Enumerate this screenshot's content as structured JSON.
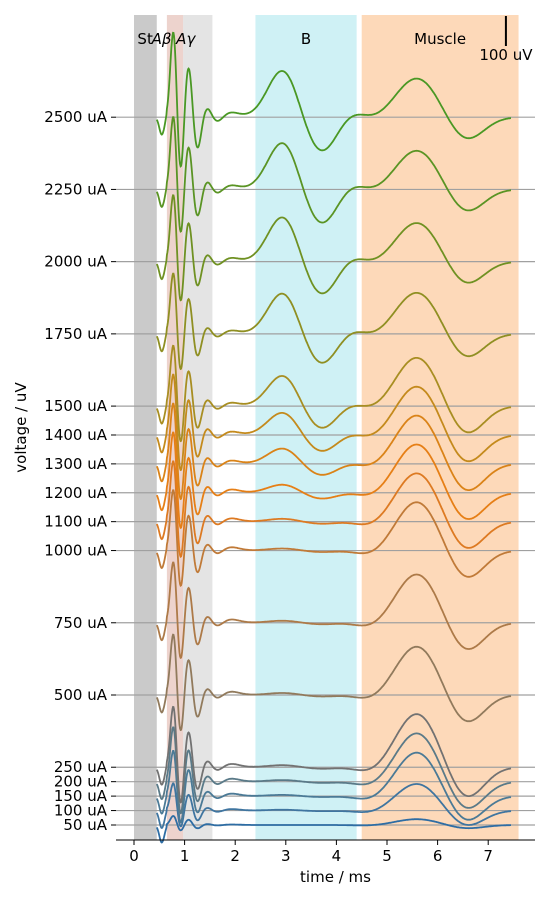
{
  "chart_data": {
    "type": "line",
    "xlabel": "time / ms",
    "ylabel": "voltage / uV",
    "xlim": [
      -0.35,
      8.0
    ],
    "x_ticks": [
      0,
      1,
      2,
      3,
      4,
      5,
      6,
      7
    ],
    "scale_bar": {
      "label": "100 uV",
      "time_ms": 7.35,
      "voltage_uV": 100
    },
    "regions": [
      {
        "name": "St",
        "label": "St",
        "x_start": 0.0,
        "x_end": 0.45,
        "color": "#b3b3b3",
        "alpha": 0.7
      },
      {
        "name": "Ab",
        "label": "",
        "x_start": 0.65,
        "x_end": 0.97,
        "color": "#e8c8c0",
        "alpha": 0.8
      },
      {
        "name": "Ag",
        "label": "",
        "x_start": 0.97,
        "x_end": 1.55,
        "color": "#d9d9d9",
        "alpha": 0.7
      },
      {
        "name": "B",
        "label": "B",
        "x_start": 2.4,
        "x_end": 4.4,
        "color": "#a8e6ec",
        "alpha": 0.55
      },
      {
        "name": "Muscle",
        "label": "Muscle",
        "x_start": 4.5,
        "x_end": 7.6,
        "color": "#fdd0a8",
        "alpha": 0.8
      }
    ],
    "region_label_abg": "Aβ Aγ",
    "series": [
      {
        "name": "50 uA",
        "level": 50,
        "color": "#2e6da4",
        "a_amp": 0.15,
        "b_amp": 0.0,
        "m_amp": 0.12
      },
      {
        "name": "100 uA",
        "level": 100,
        "color": "#3f75a0",
        "a_amp": 0.45,
        "b_amp": 0.02,
        "m_amp": 0.55
      },
      {
        "name": "150 uA",
        "level": 150,
        "color": "#4b7a96",
        "a_amp": 0.75,
        "b_amp": 0.03,
        "m_amp": 0.9
      },
      {
        "name": "200 uA",
        "level": 200,
        "color": "#5a7a88",
        "a_amp": 0.9,
        "b_amp": 0.04,
        "m_amp": 1.0
      },
      {
        "name": "250 uA",
        "level": 250,
        "color": "#727272",
        "a_amp": 1.0,
        "b_amp": 0.05,
        "m_amp": 1.1
      },
      {
        "name": "500 uA",
        "level": 500,
        "color": "#917a5c",
        "a_amp": 1.0,
        "b_amp": 0.05,
        "m_amp": 1.0
      },
      {
        "name": "750 uA",
        "level": 750,
        "color": "#ad7a48",
        "a_amp": 1.0,
        "b_amp": 0.05,
        "m_amp": 1.0
      },
      {
        "name": "1000 uA",
        "level": 1000,
        "color": "#c07a38",
        "a_amp": 1.0,
        "b_amp": 0.05,
        "m_amp": 1.0
      },
      {
        "name": "1100 uA",
        "level": 1100,
        "color": "#dd7a22",
        "a_amp": 1.0,
        "b_amp": 0.07,
        "m_amp": 1.0
      },
      {
        "name": "1200 uA",
        "level": 1200,
        "color": "#e67f16",
        "a_amp": 1.0,
        "b_amp": 0.2,
        "m_amp": 1.0
      },
      {
        "name": "1300 uA",
        "level": 1300,
        "color": "#da8318",
        "a_amp": 1.0,
        "b_amp": 0.38,
        "m_amp": 1.0
      },
      {
        "name": "1400 uA",
        "level": 1400,
        "color": "#c48a1c",
        "a_amp": 1.0,
        "b_amp": 0.55,
        "m_amp": 1.0
      },
      {
        "name": "1500 uA",
        "level": 1500,
        "color": "#a88e22",
        "a_amp": 1.0,
        "b_amp": 0.75,
        "m_amp": 1.0
      },
      {
        "name": "1750 uA",
        "level": 1750,
        "color": "#8f8f22",
        "a_amp": 1.0,
        "b_amp": 1.0,
        "m_amp": 0.85
      },
      {
        "name": "2000 uA",
        "level": 2000,
        "color": "#6f9122",
        "a_amp": 1.1,
        "b_amp": 1.1,
        "m_amp": 0.8
      },
      {
        "name": "2250 uA",
        "level": 2250,
        "color": "#5a9424",
        "a_amp": 1.2,
        "b_amp": 1.15,
        "m_amp": 0.8
      },
      {
        "name": "2500 uA",
        "level": 2500,
        "color": "#4a9824",
        "a_amp": 1.4,
        "b_amp": 1.15,
        "m_amp": 0.8
      }
    ]
  }
}
